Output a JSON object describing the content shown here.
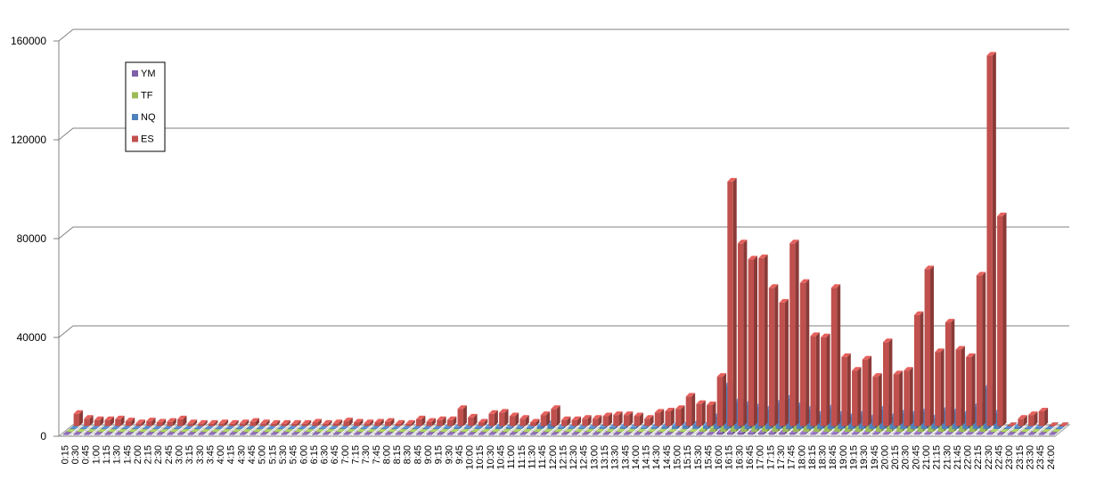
{
  "chart_data": {
    "type": "bar",
    "categories": [
      "0:15",
      "0:30",
      "0:45",
      "1:00",
      "1:15",
      "1:30",
      "1:45",
      "2:00",
      "2:15",
      "2:30",
      "2:45",
      "3:00",
      "3:15",
      "3:30",
      "3:45",
      "4:00",
      "4:15",
      "4:30",
      "4:45",
      "5:00",
      "5:15",
      "5:30",
      "5:45",
      "6:00",
      "6:15",
      "6:30",
      "6:45",
      "7:00",
      "7:15",
      "7:30",
      "7:45",
      "8:00",
      "8:15",
      "8:30",
      "8:45",
      "9:00",
      "9:15",
      "9:30",
      "9:45",
      "10:00",
      "10:15",
      "10:30",
      "10:45",
      "11:00",
      "11:15",
      "11:30",
      "11:45",
      "12:00",
      "12:15",
      "12:30",
      "12:45",
      "13:00",
      "13:15",
      "13:30",
      "13:45",
      "14:00",
      "14:15",
      "14:30",
      "14:45",
      "15:00",
      "15:15",
      "15:30",
      "15:45",
      "16:00",
      "16:15",
      "16:30",
      "16:45",
      "17:00",
      "17:15",
      "17:30",
      "17:45",
      "18:00",
      "18:15",
      "18:30",
      "18:45",
      "19:00",
      "19:15",
      "19:30",
      "19:45",
      "20:00",
      "20:15",
      "20:30",
      "20:45",
      "21:00",
      "21:15",
      "21:30",
      "21:45",
      "22:00",
      "22:15",
      "22:30",
      "22:45",
      "23:00",
      "23:15",
      "23:30",
      "23:45",
      "24:00"
    ],
    "series": [
      {
        "name": "YM",
        "color": "#7f5fa8",
        "values": [
          0,
          0,
          0,
          0,
          0,
          0,
          0,
          0,
          0,
          0,
          0,
          0,
          0,
          0,
          0,
          0,
          0,
          0,
          0,
          0,
          0,
          0,
          0,
          0,
          0,
          0,
          0,
          0,
          0,
          0,
          0,
          0,
          0,
          0,
          0,
          0,
          0,
          0,
          0,
          0,
          0,
          0,
          0,
          0,
          0,
          0,
          0,
          0,
          0,
          0,
          0,
          0,
          0,
          0,
          0,
          0,
          0,
          0,
          0,
          0,
          0,
          0,
          0,
          1000,
          800,
          900,
          700,
          800,
          700,
          800,
          500,
          400,
          300,
          300,
          300,
          300,
          300,
          300,
          300,
          300,
          200,
          300,
          400,
          300,
          300,
          300,
          300,
          300,
          300,
          300,
          0,
          0,
          0,
          0,
          0,
          0
        ]
      },
      {
        "name": "TF",
        "color": "#9bbb59",
        "values": [
          0,
          0,
          0,
          0,
          0,
          0,
          0,
          0,
          0,
          0,
          0,
          0,
          0,
          0,
          0,
          0,
          0,
          0,
          0,
          0,
          0,
          0,
          0,
          0,
          0,
          0,
          0,
          0,
          0,
          0,
          0,
          0,
          0,
          0,
          0,
          0,
          0,
          0,
          0,
          0,
          0,
          0,
          0,
          0,
          0,
          0,
          0,
          0,
          0,
          0,
          0,
          0,
          0,
          0,
          0,
          0,
          0,
          0,
          0,
          0,
          0,
          1000,
          1500,
          9000,
          5000,
          6500,
          5500,
          4500,
          7000,
          4000,
          3000,
          3000,
          2500,
          2500,
          2500,
          2000,
          4000,
          3000,
          2500,
          2500,
          2000,
          4000,
          4500,
          4500,
          3000,
          3000,
          2500,
          8000,
          3500,
          0,
          0,
          0,
          0,
          0,
          0,
          0
        ]
      },
      {
        "name": "NQ",
        "color": "#4f81bd",
        "values": [
          0,
          0,
          0,
          0,
          0,
          0,
          0,
          0,
          0,
          0,
          0,
          0,
          0,
          0,
          0,
          0,
          0,
          0,
          0,
          0,
          0,
          0,
          0,
          0,
          0,
          0,
          0,
          0,
          0,
          0,
          0,
          0,
          0,
          0,
          0,
          0,
          500,
          700,
          600,
          500,
          800,
          900,
          700,
          600,
          500,
          1200,
          2200,
          700,
          600,
          500,
          600,
          700,
          800,
          900,
          700,
          600,
          800,
          1000,
          1300,
          1500,
          2000,
          1500,
          5000,
          17500,
          11000,
          10000,
          9000,
          8000,
          10500,
          12500,
          9500,
          8000,
          6000,
          8500,
          6000,
          5000,
          6000,
          4500,
          8000,
          5000,
          6500,
          6000,
          7000,
          4500,
          7500,
          7000,
          6000,
          9000,
          16500,
          6500,
          0,
          1000,
          0,
          500,
          0,
          0
        ]
      },
      {
        "name": "ES",
        "color": "#c0504d",
        "values": [
          5000,
          3000,
          2500,
          2500,
          2800,
          2000,
          1200,
          2000,
          1500,
          1800,
          2800,
          1200,
          1000,
          1000,
          1200,
          1000,
          1200,
          1800,
          1200,
          1000,
          1000,
          1000,
          1000,
          1500,
          1000,
          1200,
          2000,
          1500,
          1200,
          1500,
          1800,
          1000,
          1000,
          2800,
          1800,
          2500,
          2500,
          7000,
          3500,
          1500,
          5000,
          5500,
          4000,
          3000,
          1500,
          4500,
          7000,
          2500,
          2500,
          3000,
          3000,
          4000,
          4500,
          4500,
          4000,
          3000,
          5500,
          6000,
          7000,
          12000,
          9000,
          8500,
          20000,
          99000,
          74000,
          67500,
          68000,
          56000,
          50000,
          74000,
          58000,
          36500,
          36000,
          56000,
          28000,
          22500,
          27000,
          20000,
          34000,
          21000,
          22500,
          45000,
          63500,
          30000,
          42000,
          31000,
          28000,
          61000,
          150000,
          85000,
          0,
          3000,
          4500,
          6000,
          0,
          0
        ]
      }
    ],
    "ylim": [
      0,
      160000
    ],
    "yticks": [
      "0",
      "40000",
      "80000",
      "120000",
      "160000"
    ],
    "grid": true,
    "legend_position": "left-top"
  }
}
